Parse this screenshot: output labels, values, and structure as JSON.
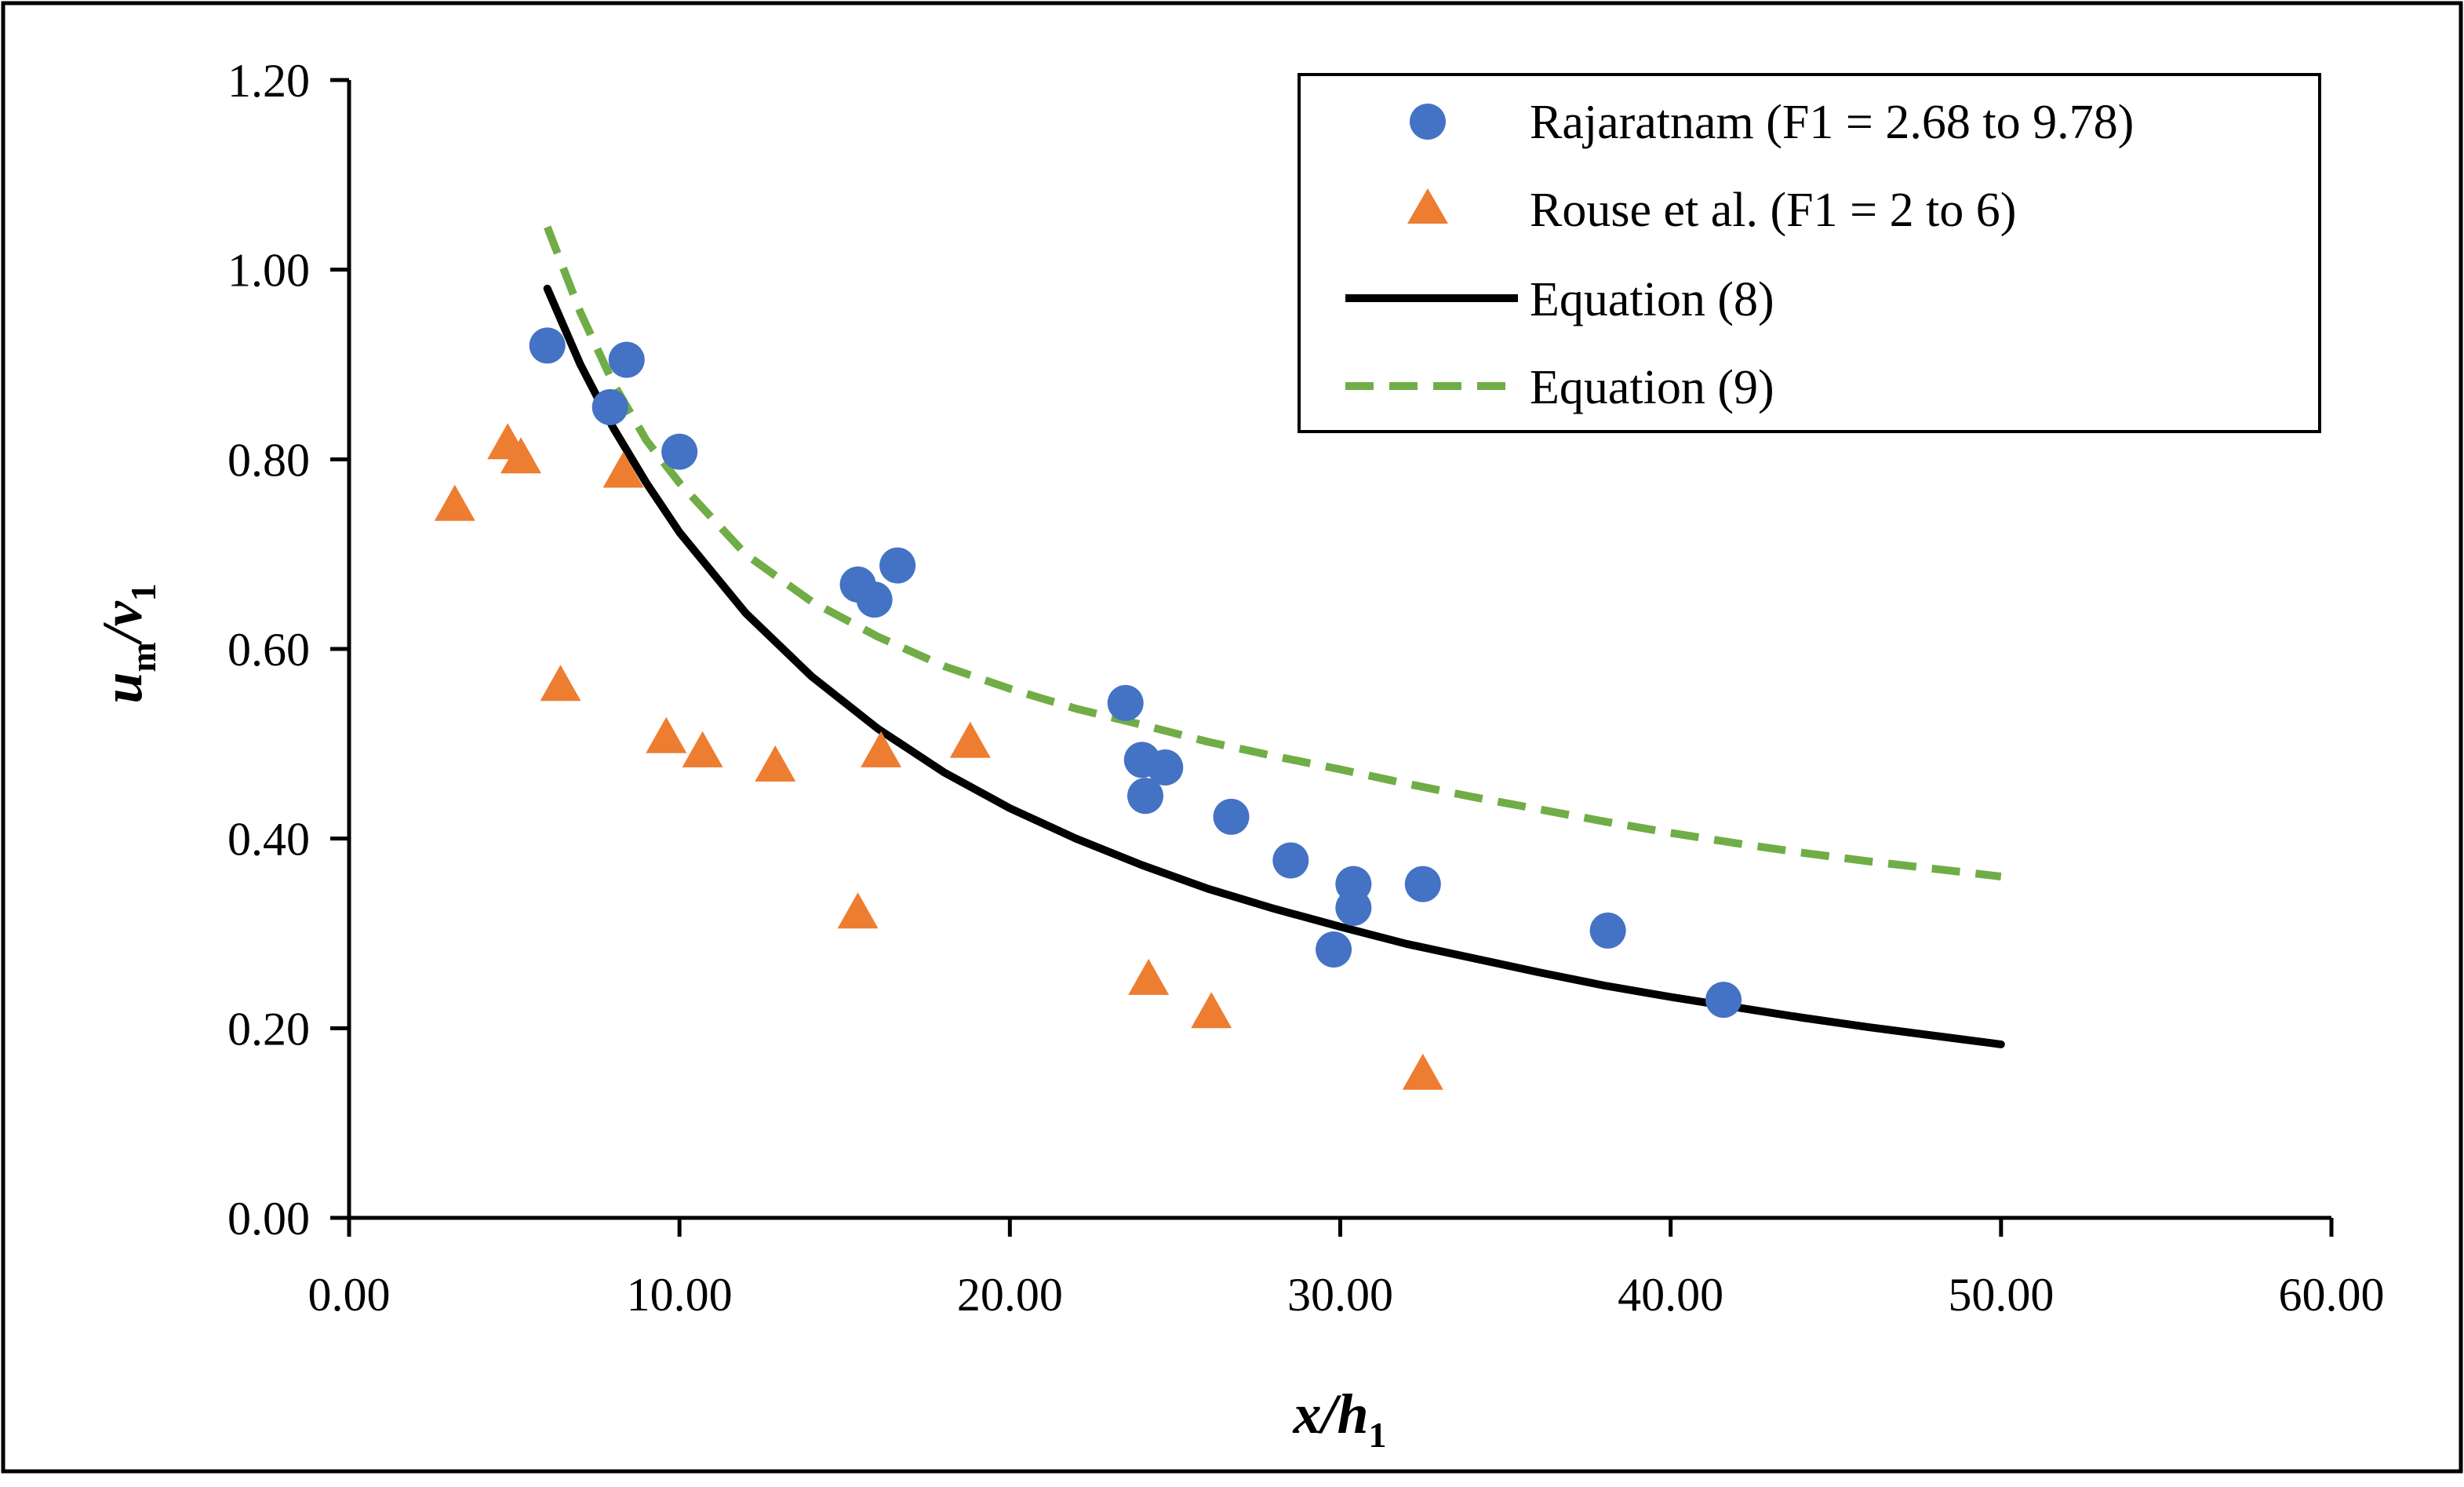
{
  "chart_data": {
    "type": "scatter",
    "xlabel": {
      "base": "x/h",
      "sub": "1"
    },
    "ylabel": {
      "base1": "u",
      "sub1": "m",
      "mid": "/v",
      "sub2": "1"
    },
    "xlim": [
      0,
      60
    ],
    "ylim": [
      0,
      1.2
    ],
    "x_ticks": [
      "0.00",
      "10.00",
      "20.00",
      "30.00",
      "40.00",
      "50.00",
      "60.00"
    ],
    "y_ticks": [
      "0.00",
      "0.20",
      "0.40",
      "0.60",
      "0.80",
      "1.00",
      "1.20"
    ],
    "legend_position": "top-right",
    "series": [
      {
        "name": "Rajaratnam (F1 = 2.68 to 9.78)",
        "kind": "scatter",
        "marker": "circle",
        "color": "#4472C4",
        "points": [
          [
            6.0,
            0.92
          ],
          [
            7.9,
            0.855
          ],
          [
            8.4,
            0.905
          ],
          [
            10.0,
            0.808
          ],
          [
            15.4,
            0.668
          ],
          [
            15.9,
            0.652
          ],
          [
            16.6,
            0.688
          ],
          [
            23.5,
            0.543
          ],
          [
            24.0,
            0.483
          ],
          [
            24.1,
            0.445
          ],
          [
            24.7,
            0.475
          ],
          [
            26.7,
            0.423
          ],
          [
            28.5,
            0.377
          ],
          [
            29.8,
            0.283
          ],
          [
            30.4,
            0.352
          ],
          [
            30.4,
            0.327
          ],
          [
            32.5,
            0.352
          ],
          [
            38.1,
            0.303
          ],
          [
            41.6,
            0.23
          ]
        ]
      },
      {
        "name": "Rouse et al. (F1 = 2 to 6)",
        "kind": "scatter",
        "marker": "triangle",
        "color": "#ED7D31",
        "points": [
          [
            3.2,
            0.75
          ],
          [
            4.8,
            0.815
          ],
          [
            5.2,
            0.8
          ],
          [
            6.4,
            0.56
          ],
          [
            8.3,
            0.785
          ],
          [
            9.6,
            0.505
          ],
          [
            10.7,
            0.49
          ],
          [
            12.9,
            0.475
          ],
          [
            15.4,
            0.32
          ],
          [
            16.1,
            0.49
          ],
          [
            18.8,
            0.5
          ],
          [
            24.2,
            0.25
          ],
          [
            26.1,
            0.215
          ],
          [
            32.5,
            0.15
          ]
        ]
      },
      {
        "name": "Equation (8)",
        "kind": "line",
        "style": "solid",
        "color": "#000000",
        "points": [
          [
            6,
            0.98
          ],
          [
            7,
            0.9
          ],
          [
            8,
            0.833
          ],
          [
            9,
            0.775
          ],
          [
            10,
            0.723
          ],
          [
            12,
            0.638
          ],
          [
            14,
            0.571
          ],
          [
            16,
            0.516
          ],
          [
            18,
            0.47
          ],
          [
            20,
            0.432
          ],
          [
            22,
            0.4
          ],
          [
            24,
            0.372
          ],
          [
            26,
            0.347
          ],
          [
            28,
            0.326
          ],
          [
            30,
            0.307
          ],
          [
            32,
            0.289
          ],
          [
            34,
            0.274
          ],
          [
            36,
            0.259
          ],
          [
            38,
            0.245
          ],
          [
            40,
            0.233
          ],
          [
            42,
            0.222
          ],
          [
            44,
            0.211
          ],
          [
            46,
            0.201
          ],
          [
            48,
            0.192
          ],
          [
            50,
            0.183
          ]
        ]
      },
      {
        "name": "Equation (9)",
        "kind": "line",
        "style": "dashed",
        "color": "#70AD47",
        "points": [
          [
            6,
            1.045
          ],
          [
            7,
            0.955
          ],
          [
            8,
            0.88
          ],
          [
            9,
            0.82
          ],
          [
            10,
            0.775
          ],
          [
            12,
            0.7
          ],
          [
            14,
            0.65
          ],
          [
            16,
            0.613
          ],
          [
            18,
            0.582
          ],
          [
            20,
            0.558
          ],
          [
            22,
            0.537
          ],
          [
            24,
            0.52
          ],
          [
            26,
            0.502
          ],
          [
            28,
            0.487
          ],
          [
            30,
            0.473
          ],
          [
            32,
            0.458
          ],
          [
            34,
            0.444
          ],
          [
            36,
            0.431
          ],
          [
            38,
            0.418
          ],
          [
            40,
            0.406
          ],
          [
            42,
            0.395
          ],
          [
            44,
            0.385
          ],
          [
            46,
            0.376
          ],
          [
            48,
            0.368
          ],
          [
            50,
            0.36
          ]
        ]
      }
    ]
  }
}
